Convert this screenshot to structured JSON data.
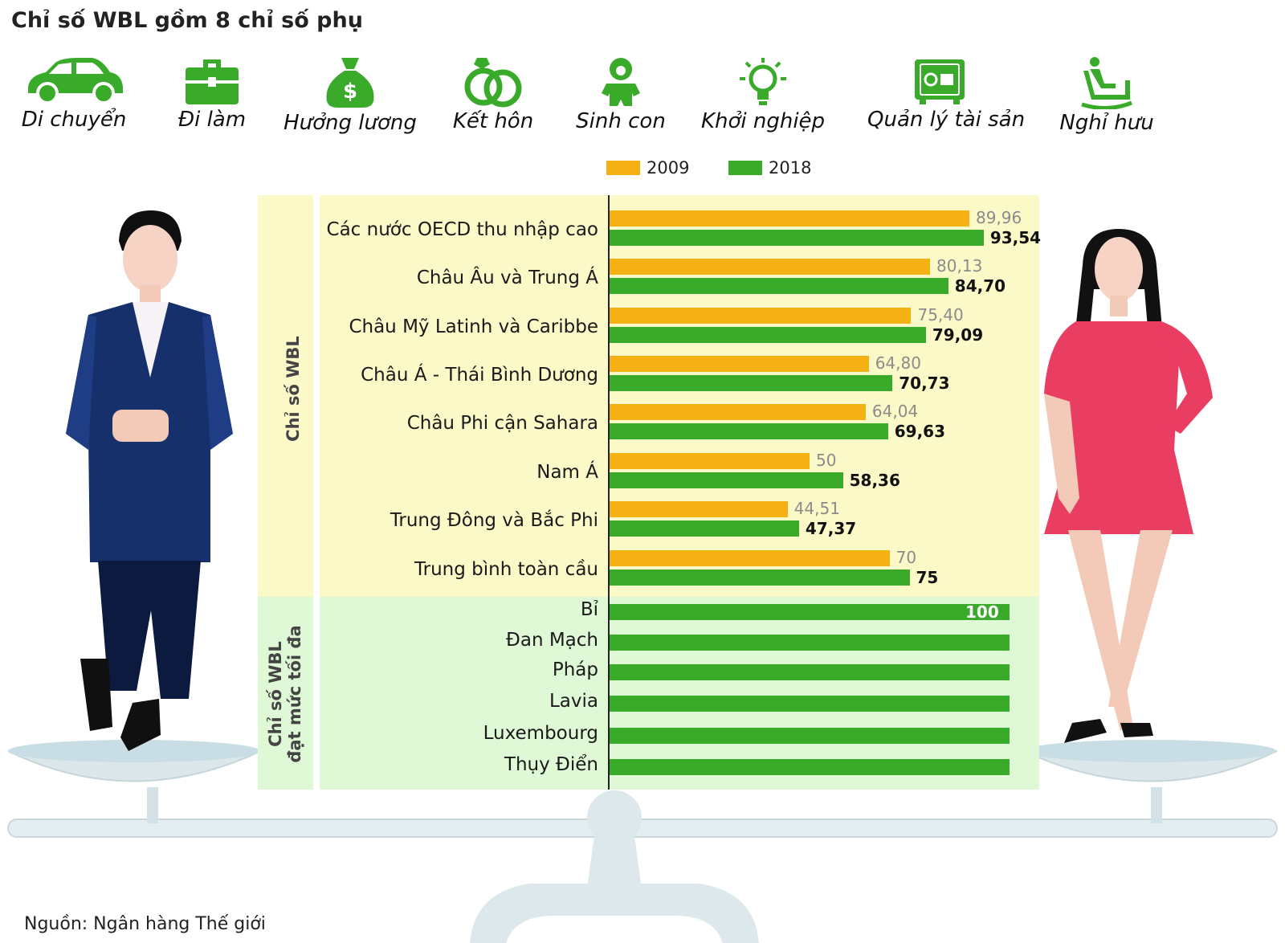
{
  "title": "Chỉ số WBL gồm 8 chỉ số phụ",
  "icons": [
    {
      "name": "car-icon",
      "label": "Di chuyển"
    },
    {
      "name": "briefcase-icon",
      "label": "Đi làm"
    },
    {
      "name": "money-bag-icon",
      "label": "Hưởng lương"
    },
    {
      "name": "rings-icon",
      "label": "Kết hôn"
    },
    {
      "name": "baby-icon",
      "label": "Sinh con"
    },
    {
      "name": "lightbulb-icon",
      "label": "Khởi nghiệp"
    },
    {
      "name": "safe-icon",
      "label": "Quản lý tài sản"
    },
    {
      "name": "rocking-chair-icon",
      "label": "Nghỉ hưu"
    }
  ],
  "side_labels": {
    "wbl": "Chỉ số WBL",
    "wbl_max_line1": "Chỉ số WBL",
    "wbl_max_line2": "đạt mức tối đa"
  },
  "colors": {
    "y2009": "#f5b014",
    "y2018": "#3aaa2a",
    "panel_yellow": "#fbf9c7",
    "panel_green": "#dff8d6"
  },
  "source": "Nguồn: Ngân hàng Thế giới",
  "chart_data": {
    "type": "bar",
    "orientation": "horizontal",
    "legend": [
      "2009",
      "2018"
    ],
    "legend_position": "top",
    "xlim": [
      0,
      100
    ],
    "groups": [
      {
        "category": "Các nước OECD thu nhập cao",
        "v2009": 89.96,
        "v2018": 93.54,
        "l2009": "89,96",
        "l2018": "93,54"
      },
      {
        "category": "Châu Âu và Trung Á",
        "v2009": 80.13,
        "v2018": 84.7,
        "l2009": "80,13",
        "l2018": "84,70"
      },
      {
        "category": "Châu Mỹ Latinh và Caribbe",
        "v2009": 75.4,
        "v2018": 79.09,
        "l2009": "75,40",
        "l2018": "79,09"
      },
      {
        "category": "Châu Á - Thái Bình Dương",
        "v2009": 64.8,
        "v2018": 70.73,
        "l2009": "64,80",
        "l2018": "70,73"
      },
      {
        "category": "Châu Phi cận Sahara",
        "v2009": 64.04,
        "v2018": 69.63,
        "l2009": "64,04",
        "l2018": "69,63"
      },
      {
        "category": "Nam Á",
        "v2009": 50,
        "v2018": 58.36,
        "l2009": "50",
        "l2018": "58,36"
      },
      {
        "category": "Trung Đông và Bắc Phi",
        "v2009": 44.51,
        "v2018": 47.37,
        "l2009": "44,51",
        "l2018": "47,37"
      },
      {
        "category": "Trung bình toàn cầu",
        "v2009": 70,
        "v2018": 75,
        "l2009": "70",
        "l2018": "75"
      }
    ],
    "max_countries": {
      "value": 100,
      "value_label": "100",
      "categories": [
        "Bỉ",
        "Đan Mạch",
        "Pháp",
        "Lavia",
        "Luxembourg",
        "Thụy Điển"
      ]
    }
  }
}
